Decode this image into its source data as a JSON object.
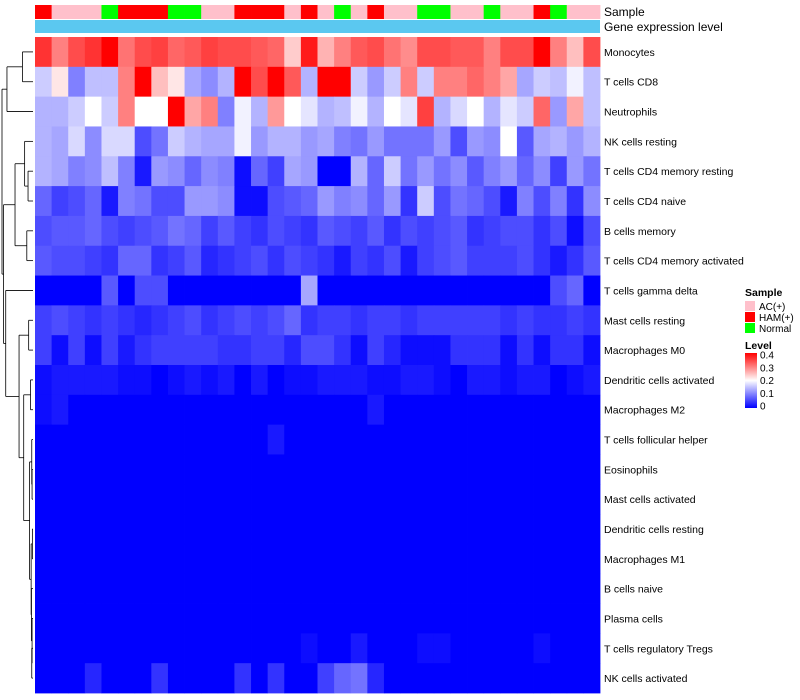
{
  "chart_data": {
    "type": "heatmap",
    "title": "",
    "annotation_tracks": [
      {
        "label": "Sample"
      },
      {
        "label": "Gene expression level"
      }
    ],
    "sample_groups": [
      "HAM(+)",
      "AC(+)",
      "AC(+)",
      "AC(+)",
      "Normal",
      "HAM(+)",
      "HAM(+)",
      "HAM(+)",
      "Normal",
      "Normal",
      "AC(+)",
      "AC(+)",
      "HAM(+)",
      "HAM(+)",
      "HAM(+)",
      "AC(+)",
      "HAM(+)",
      "AC(+)",
      "Normal",
      "AC(+)",
      "HAM(+)",
      "AC(+)",
      "AC(+)",
      "Normal",
      "Normal",
      "AC(+)",
      "AC(+)",
      "Normal",
      "AC(+)",
      "AC(+)",
      "HAM(+)",
      "Normal",
      "AC(+)",
      "AC(+)"
    ],
    "rows": [
      {
        "label": "Monocytes",
        "values": [
          0.36,
          0.3,
          0.34,
          0.36,
          0.4,
          0.31,
          0.34,
          0.35,
          0.32,
          0.33,
          0.35,
          0.34,
          0.34,
          0.33,
          0.32,
          0.24,
          0.38,
          0.26,
          0.3,
          0.33,
          0.34,
          0.31,
          0.29,
          0.34,
          0.34,
          0.33,
          0.33,
          0.3,
          0.34,
          0.34,
          0.4,
          0.3,
          0.25,
          0.34
        ]
      },
      {
        "label": "T cells CD8",
        "values": [
          0.16,
          0.22,
          0.1,
          0.15,
          0.15,
          0.3,
          0.4,
          0.25,
          0.22,
          0.13,
          0.11,
          0.14,
          0.4,
          0.34,
          0.4,
          0.33,
          0.14,
          0.4,
          0.4,
          0.16,
          0.12,
          0.16,
          0.3,
          0.16,
          0.3,
          0.3,
          0.32,
          0.3,
          0.27,
          0.13,
          0.16,
          0.15,
          0.19,
          0.15
        ]
      },
      {
        "label": "Neutrophils",
        "values": [
          0.14,
          0.14,
          0.16,
          0.2,
          0.16,
          0.3,
          0.2,
          0.2,
          0.4,
          0.27,
          0.3,
          0.1,
          0.19,
          0.14,
          0.28,
          0.2,
          0.18,
          0.14,
          0.15,
          0.19,
          0.14,
          0.2,
          0.18,
          0.35,
          0.14,
          0.17,
          0.2,
          0.14,
          0.18,
          0.16,
          0.32,
          0.12,
          0.27,
          0.15
        ]
      },
      {
        "label": "NK cells resting",
        "values": [
          0.14,
          0.13,
          0.17,
          0.11,
          0.17,
          0.17,
          0.06,
          0.09,
          0.16,
          0.14,
          0.13,
          0.13,
          0.19,
          0.12,
          0.14,
          0.14,
          0.12,
          0.13,
          0.1,
          0.09,
          0.12,
          0.09,
          0.09,
          0.09,
          0.12,
          0.06,
          0.12,
          0.11,
          0.2,
          0.07,
          0.13,
          0.14,
          0.12,
          0.14
        ]
      },
      {
        "label": "T cells CD4 memory resting",
        "values": [
          0.14,
          0.13,
          0.1,
          0.11,
          0.15,
          0.1,
          0.02,
          0.12,
          0.11,
          0.08,
          0.11,
          0.1,
          0.01,
          0.08,
          0.05,
          0.13,
          0.12,
          0.0,
          0.0,
          0.14,
          0.08,
          0.16,
          0.09,
          0.12,
          0.09,
          0.11,
          0.07,
          0.1,
          0.12,
          0.08,
          0.11,
          0.05,
          0.12,
          0.09
        ]
      },
      {
        "label": "T cells CD4 naive",
        "values": [
          0.08,
          0.05,
          0.06,
          0.08,
          0.02,
          0.1,
          0.09,
          0.06,
          0.06,
          0.12,
          0.12,
          0.11,
          0.01,
          0.01,
          0.06,
          0.07,
          0.08,
          0.12,
          0.1,
          0.11,
          0.08,
          0.12,
          0.04,
          0.16,
          0.06,
          0.09,
          0.08,
          0.06,
          0.02,
          0.1,
          0.06,
          0.1,
          0.04,
          0.11
        ]
      },
      {
        "label": "B cells memory",
        "values": [
          0.06,
          0.07,
          0.07,
          0.08,
          0.06,
          0.05,
          0.06,
          0.07,
          0.09,
          0.08,
          0.05,
          0.07,
          0.05,
          0.04,
          0.06,
          0.05,
          0.04,
          0.07,
          0.06,
          0.05,
          0.07,
          0.04,
          0.06,
          0.05,
          0.06,
          0.07,
          0.04,
          0.05,
          0.06,
          0.06,
          0.04,
          0.06,
          0.01,
          0.06
        ]
      },
      {
        "label": "T cells CD4 memory activated",
        "values": [
          0.07,
          0.06,
          0.06,
          0.05,
          0.04,
          0.08,
          0.08,
          0.04,
          0.05,
          0.07,
          0.03,
          0.04,
          0.05,
          0.06,
          0.04,
          0.06,
          0.05,
          0.04,
          0.02,
          0.05,
          0.04,
          0.06,
          0.02,
          0.05,
          0.06,
          0.07,
          0.05,
          0.05,
          0.05,
          0.06,
          0.04,
          0.02,
          0.04,
          0.07
        ]
      },
      {
        "label": "T cells gamma delta",
        "values": [
          0.0,
          0.0,
          0.0,
          0.0,
          0.07,
          0.0,
          0.06,
          0.06,
          0.0,
          0.0,
          0.0,
          0.0,
          0.0,
          0.0,
          0.0,
          0.0,
          0.13,
          0.0,
          0.0,
          0.0,
          0.0,
          0.0,
          0.0,
          0.0,
          0.0,
          0.0,
          0.0,
          0.0,
          0.0,
          0.0,
          0.0,
          0.06,
          0.08,
          0.0
        ]
      },
      {
        "label": "Mast cells resting",
        "values": [
          0.05,
          0.06,
          0.05,
          0.04,
          0.05,
          0.04,
          0.03,
          0.04,
          0.05,
          0.06,
          0.04,
          0.05,
          0.06,
          0.05,
          0.06,
          0.08,
          0.04,
          0.05,
          0.05,
          0.04,
          0.05,
          0.05,
          0.04,
          0.05,
          0.05,
          0.05,
          0.05,
          0.05,
          0.04,
          0.05,
          0.04,
          0.04,
          0.05,
          0.04
        ]
      },
      {
        "label": "Macrophages M0",
        "values": [
          0.05,
          0.01,
          0.05,
          0.01,
          0.05,
          0.02,
          0.04,
          0.05,
          0.05,
          0.05,
          0.05,
          0.04,
          0.04,
          0.05,
          0.05,
          0.03,
          0.06,
          0.06,
          0.04,
          0.01,
          0.05,
          0.03,
          0.01,
          0.01,
          0.01,
          0.04,
          0.04,
          0.04,
          0.01,
          0.04,
          0.01,
          0.04,
          0.04,
          0.01
        ]
      },
      {
        "label": "Dendritic cells activated",
        "values": [
          0.01,
          0.02,
          0.02,
          0.02,
          0.02,
          0.01,
          0.01,
          0.0,
          0.01,
          0.02,
          0.01,
          0.02,
          0.0,
          0.02,
          0.0,
          0.01,
          0.01,
          0.02,
          0.02,
          0.02,
          0.01,
          0.01,
          0.02,
          0.02,
          0.01,
          0.0,
          0.02,
          0.02,
          0.01,
          0.02,
          0.02,
          0.0,
          0.01,
          0.02
        ]
      },
      {
        "label": "Macrophages M2",
        "values": [
          0.01,
          0.02,
          0.0,
          0.0,
          0.0,
          0.0,
          0.0,
          0.0,
          0.0,
          0.0,
          0.0,
          0.0,
          0.0,
          0.0,
          0.0,
          0.0,
          0.0,
          0.0,
          0.0,
          0.0,
          0.02,
          0.0,
          0.0,
          0.0,
          0.0,
          0.0,
          0.0,
          0.0,
          0.0,
          0.0,
          0.0,
          0.0,
          0.0,
          0.0
        ]
      },
      {
        "label": "T cells follicular helper",
        "values": [
          0.0,
          0.0,
          0.0,
          0.0,
          0.0,
          0.0,
          0.0,
          0.0,
          0.0,
          0.0,
          0.0,
          0.0,
          0.0,
          0.0,
          0.02,
          0.0,
          0.0,
          0.0,
          0.0,
          0.0,
          0.0,
          0.0,
          0.0,
          0.0,
          0.0,
          0.0,
          0.0,
          0.0,
          0.0,
          0.0,
          0.0,
          0.0,
          0.0,
          0.0
        ]
      },
      {
        "label": "Eosinophils",
        "values": [
          0.0,
          0.0,
          0.0,
          0.0,
          0.0,
          0.0,
          0.0,
          0.0,
          0.0,
          0.0,
          0.0,
          0.0,
          0.0,
          0.0,
          0.0,
          0.0,
          0.0,
          0.0,
          0.0,
          0.0,
          0.0,
          0.0,
          0.0,
          0.0,
          0.0,
          0.0,
          0.0,
          0.0,
          0.0,
          0.0,
          0.0,
          0.0,
          0.0,
          0.0
        ]
      },
      {
        "label": "Mast cells activated",
        "values": [
          0.0,
          0.0,
          0.0,
          0.0,
          0.0,
          0.0,
          0.0,
          0.0,
          0.0,
          0.0,
          0.0,
          0.0,
          0.0,
          0.0,
          0.0,
          0.0,
          0.0,
          0.0,
          0.0,
          0.0,
          0.0,
          0.0,
          0.0,
          0.0,
          0.0,
          0.0,
          0.0,
          0.0,
          0.0,
          0.0,
          0.0,
          0.0,
          0.0,
          0.0
        ]
      },
      {
        "label": "Dendritic cells resting",
        "values": [
          0.0,
          0.0,
          0.0,
          0.0,
          0.0,
          0.0,
          0.0,
          0.0,
          0.0,
          0.0,
          0.0,
          0.0,
          0.0,
          0.0,
          0.0,
          0.0,
          0.0,
          0.0,
          0.0,
          0.0,
          0.0,
          0.0,
          0.0,
          0.0,
          0.0,
          0.0,
          0.0,
          0.0,
          0.0,
          0.0,
          0.0,
          0.0,
          0.0,
          0.0
        ]
      },
      {
        "label": "Macrophages M1",
        "values": [
          0.0,
          0.0,
          0.0,
          0.0,
          0.0,
          0.0,
          0.0,
          0.0,
          0.0,
          0.0,
          0.0,
          0.0,
          0.0,
          0.0,
          0.0,
          0.0,
          0.0,
          0.0,
          0.0,
          0.0,
          0.0,
          0.0,
          0.0,
          0.0,
          0.0,
          0.0,
          0.0,
          0.0,
          0.0,
          0.0,
          0.0,
          0.0,
          0.0,
          0.0
        ]
      },
      {
        "label": "B cells naive",
        "values": [
          0.0,
          0.0,
          0.0,
          0.0,
          0.0,
          0.0,
          0.0,
          0.0,
          0.0,
          0.0,
          0.0,
          0.0,
          0.0,
          0.0,
          0.0,
          0.0,
          0.0,
          0.0,
          0.0,
          0.0,
          0.0,
          0.0,
          0.0,
          0.0,
          0.0,
          0.0,
          0.0,
          0.0,
          0.0,
          0.0,
          0.0,
          0.0,
          0.0,
          0.0
        ]
      },
      {
        "label": "Plasma cells",
        "values": [
          0.0,
          0.0,
          0.0,
          0.0,
          0.0,
          0.0,
          0.0,
          0.0,
          0.0,
          0.0,
          0.0,
          0.0,
          0.0,
          0.0,
          0.0,
          0.0,
          0.0,
          0.0,
          0.0,
          0.0,
          0.0,
          0.0,
          0.0,
          0.0,
          0.0,
          0.0,
          0.0,
          0.0,
          0.0,
          0.0,
          0.0,
          0.0,
          0.0,
          0.0
        ]
      },
      {
        "label": "T cells regulatory  Tregs",
        "values": [
          0.0,
          0.0,
          0.0,
          0.0,
          0.0,
          0.0,
          0.0,
          0.0,
          0.0,
          0.0,
          0.0,
          0.0,
          0.0,
          0.0,
          0.0,
          0.0,
          0.01,
          0.0,
          0.0,
          0.02,
          0.0,
          0.0,
          0.0,
          0.01,
          0.01,
          0.0,
          0.0,
          0.0,
          0.0,
          0.0,
          0.01,
          0.0,
          0.0,
          0.0
        ]
      },
      {
        "label": "NK cells activated",
        "values": [
          0.0,
          0.0,
          0.0,
          0.03,
          0.0,
          0.0,
          0.0,
          0.04,
          0.0,
          0.0,
          0.0,
          0.0,
          0.04,
          0.0,
          0.04,
          0.0,
          0.0,
          0.05,
          0.08,
          0.09,
          0.03,
          0.0,
          0.0,
          0.0,
          0.0,
          0.0,
          0.0,
          0.0,
          0.0,
          0.0,
          0.0,
          0.0,
          0.0,
          0.0
        ]
      }
    ],
    "color_scale": {
      "min": 0,
      "mid": 0.2,
      "max": 0.4,
      "low_color": "#0000ff",
      "mid_color": "#ffffff",
      "high_color": "#ff0000"
    },
    "group_colors": {
      "AC(+)": "#ffc0cb",
      "HAM(+)": "#ff0000",
      "Normal": "#00ff00"
    },
    "expression_track_color": "#5bc8f0",
    "legend": {
      "placement": "right",
      "sample_title": "Sample",
      "sample_entries": [
        "AC(+)",
        "HAM(+)",
        "Normal"
      ],
      "level_title": "Level",
      "level_ticks": [
        "0.4",
        "0.3",
        "0.2",
        "0.1",
        "0"
      ]
    },
    "xlabel": "",
    "ylabel": "",
    "has_row_dendrogram": true
  }
}
